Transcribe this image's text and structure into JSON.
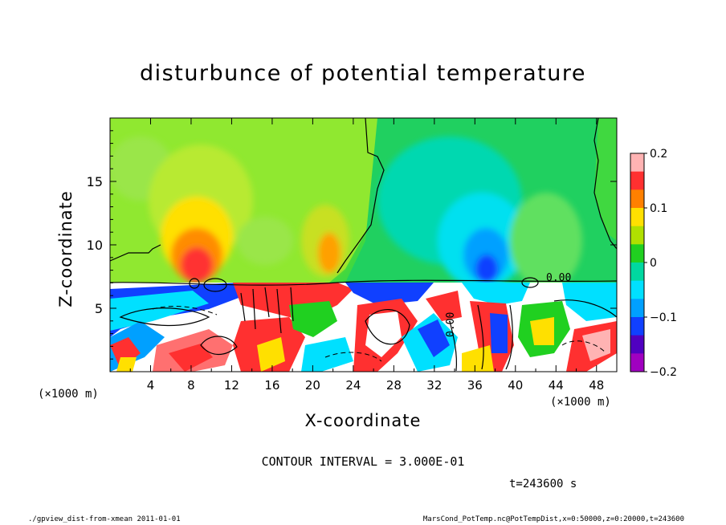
{
  "chart_data": {
    "type": "heatmap",
    "title": "disturbunce of potential temperature",
    "xlabel": "X-coordinate",
    "ylabel": "Z-coordinate",
    "x_unit_left": "(×1000 m)",
    "x_unit_right": "(×1000 m)",
    "xlim": [
      0,
      50
    ],
    "ylim": [
      0,
      20
    ],
    "xticks": [
      "4",
      "8",
      "12",
      "16",
      "20",
      "24",
      "28",
      "32",
      "36",
      "40",
      "44",
      "48"
    ],
    "yticks": [
      "5",
      "10",
      "15"
    ],
    "colorbar": {
      "range": [
        -0.2,
        0.2
      ],
      "labels": [
        "0.2",
        "0.1",
        "0",
        "−0.1",
        "−0.2"
      ],
      "colors": [
        "#ffb3b3",
        "#ff3030",
        "#ff8000",
        "#ffe000",
        "#b0e000",
        "#20d020",
        "#00d8a0",
        "#00e0ff",
        "#00a0ff",
        "#1040ff",
        "#5000c0",
        "#a000c0"
      ]
    },
    "contour_interval": "CONTOUR INTERVAL = 3.000E-01",
    "contour_labels": [
      "0.00",
      "0.00"
    ],
    "time_label": "t=243600 s"
  },
  "footer": {
    "left": "./gpview_dist-from-xmean  2011-01-01",
    "right": "MarsCond_PotTemp.nc@PotTempDist,x=0:50000,z=0:20000,t=243600"
  }
}
